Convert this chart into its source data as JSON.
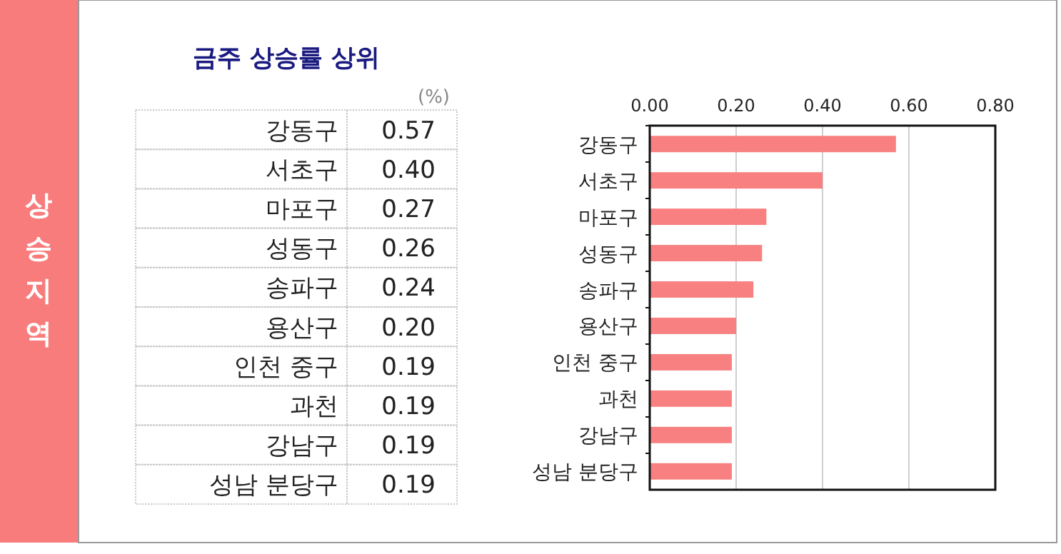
{
  "chart_data": {
    "type": "bar",
    "orientation": "horizontal",
    "title": "금주 상승률 상위",
    "categories": [
      "강동구",
      "서초구",
      "마포구",
      "성동구",
      "송파구",
      "용산구",
      "인천 중구",
      "과천",
      "강남구",
      "성남 분당구"
    ],
    "values": [
      0.57,
      0.4,
      0.27,
      0.26,
      0.24,
      0.2,
      0.19,
      0.19,
      0.19,
      0.19
    ],
    "value_labels": [
      "0.57",
      "0.40",
      "0.27",
      "0.26",
      "0.24",
      "0.20",
      "0.19",
      "0.19",
      "0.19",
      "0.19"
    ],
    "color": "#f88080",
    "xlim": [
      0,
      0.8
    ],
    "xticks": [
      {
        "value": 0,
        "label": "0.00"
      },
      {
        "value": 0.2,
        "label": "0.20"
      },
      {
        "value": 0.4,
        "label": "0.40"
      },
      {
        "value": 0.6,
        "label": "0.60"
      },
      {
        "value": 0.8,
        "label": "0.80"
      }
    ],
    "grid": "x",
    "annotations": [
      "상승지역",
      "(%)"
    ]
  }
}
